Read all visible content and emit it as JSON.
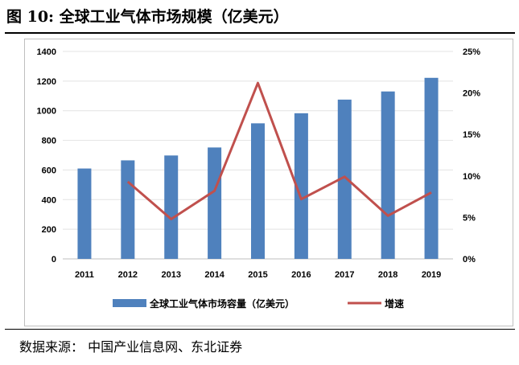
{
  "title": "图  10:  全球工业气体市场规模（亿美元）",
  "source": "数据来源：  中国产业信息网、东北证券",
  "chart_data": {
    "type": "bar",
    "categories": [
      "2011",
      "2012",
      "2013",
      "2014",
      "2015",
      "2016",
      "2017",
      "2018",
      "2019"
    ],
    "series": [
      {
        "name": "全球工业气体市场容量（亿美元）",
        "type": "bar",
        "axis": "left",
        "color": "#4f81bd",
        "values": [
          610,
          665,
          698,
          752,
          915,
          983,
          1075,
          1130,
          1222
        ]
      },
      {
        "name": "增速",
        "type": "line",
        "axis": "right",
        "color": "#c0504d",
        "values": [
          null,
          9.3,
          4.8,
          8.2,
          21.2,
          7.2,
          9.9,
          5.2,
          8.0
        ]
      }
    ],
    "yleft": {
      "lim": [
        0,
        1400
      ],
      "ticks": [
        "0",
        "200",
        "400",
        "600",
        "800",
        "1000",
        "1200",
        "1400"
      ]
    },
    "yright": {
      "lim": [
        0,
        25
      ],
      "ticks": [
        "0%",
        "5%",
        "10%",
        "15%",
        "20%",
        "25%"
      ]
    },
    "grid": true,
    "legend": "bottom"
  }
}
